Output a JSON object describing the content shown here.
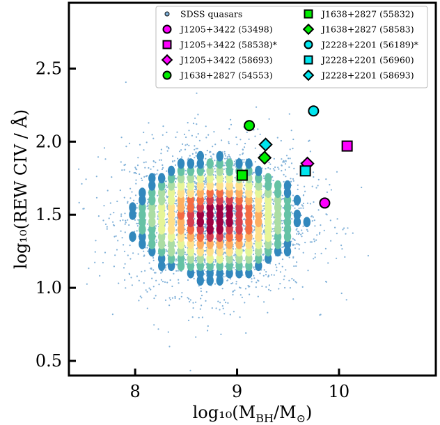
{
  "chart_data": {
    "type": "scatter",
    "title": "",
    "xlabel": "log₁₀(M",
    "xlabel_sub": "BH",
    "xlabel_mid": "/M",
    "xlabel_sub2": "⊙",
    "xlabel_end": ")",
    "ylabel": "log₁₀(REW CIV / Å)",
    "xlim": [
      7.35,
      10.95
    ],
    "ylim": [
      0.4,
      2.95
    ],
    "xticks": [
      8,
      9,
      10
    ],
    "xtick_labels": [
      "8",
      "9",
      "10"
    ],
    "yticks": [
      0.5,
      1.0,
      1.5,
      2.0,
      2.5
    ],
    "ytick_labels": [
      "0.5",
      "1.0",
      "1.5",
      "2.0",
      "2.5"
    ],
    "background": {
      "name": "SDSS quasars",
      "distribution_note": "dense hexbin density of SDSS quasars centered near (8.8, 1.48)",
      "colormap": [
        "#5e4fa2",
        "#3288bd",
        "#66c2a5",
        "#abdda4",
        "#e6f598",
        "#fee08b",
        "#fdae61",
        "#f46d43",
        "#d53e4f",
        "#9e0142"
      ],
      "point_color": "#7fb0d8"
    },
    "legend_position": "top-right",
    "legend": [
      {
        "label": "SDSS quasars",
        "marker": "dot",
        "color": "#7fb0d8"
      },
      {
        "label": "J1205+3422 (53498)",
        "marker": "circle",
        "color": "#ff00ff"
      },
      {
        "label": "J1205+3422 (58538)*",
        "marker": "square",
        "color": "#ff00ff"
      },
      {
        "label": "J1205+3422 (58693)",
        "marker": "diamond",
        "color": "#ff00ff"
      },
      {
        "label": "J1638+2827 (54553)",
        "marker": "circle",
        "color": "#00ee00"
      },
      {
        "label": "J1638+2827 (55832)",
        "marker": "square",
        "color": "#00ee00"
      },
      {
        "label": "J1638+2827 (58583)",
        "marker": "diamond",
        "color": "#00ee00"
      },
      {
        "label": "J2228+2201 (56189)*",
        "marker": "circle",
        "color": "#00e5ee"
      },
      {
        "label": "J2228+2201 (56960)",
        "marker": "square",
        "color": "#00e5ee"
      },
      {
        "label": "J2228+2201 (58693)",
        "marker": "diamond",
        "color": "#00e5ee"
      }
    ],
    "series": [
      {
        "name": "J1205+3422 (53498)",
        "marker": "circle",
        "color": "#ff00ff",
        "x": 9.86,
        "y": 1.58
      },
      {
        "name": "J1205+3422 (58538)*",
        "marker": "square",
        "color": "#ff00ff",
        "x": 10.08,
        "y": 1.97
      },
      {
        "name": "J1205+3422 (58693)",
        "marker": "diamond",
        "color": "#ff00ff",
        "x": 9.69,
        "y": 1.85
      },
      {
        "name": "J1638+2827 (54553)",
        "marker": "circle",
        "color": "#00ee00",
        "x": 9.12,
        "y": 2.11
      },
      {
        "name": "J1638+2827 (55832)",
        "marker": "square",
        "color": "#00ee00",
        "x": 9.05,
        "y": 1.77
      },
      {
        "name": "J1638+2827 (58583)",
        "marker": "diamond",
        "color": "#00ee00",
        "x": 9.27,
        "y": 1.89
      },
      {
        "name": "J2228+2201 (56189)*",
        "marker": "circle",
        "color": "#00e5ee",
        "x": 9.75,
        "y": 2.21
      },
      {
        "name": "J2228+2201 (56960)",
        "marker": "square",
        "color": "#00e5ee",
        "x": 9.67,
        "y": 1.8
      },
      {
        "name": "J2228+2201 (58693)",
        "marker": "diamond",
        "color": "#00e5ee",
        "x": 9.28,
        "y": 1.98
      }
    ]
  }
}
